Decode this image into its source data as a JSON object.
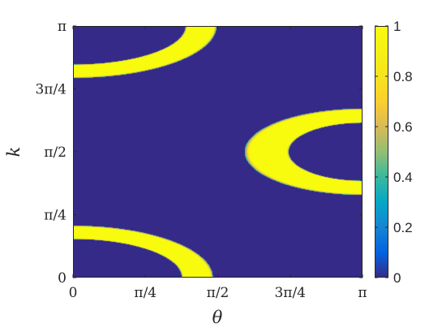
{
  "chart_data": {
    "type": "heatmap",
    "title": "",
    "xlabel": "θ",
    "ylabel": "k",
    "xlim": [
      0,
      3.14159
    ],
    "ylim": [
      0,
      3.14159
    ],
    "x_ticks": [
      {
        "value": 0,
        "label": "0"
      },
      {
        "value": 0.7854,
        "label": "π/4"
      },
      {
        "value": 1.5708,
        "label": "π/2"
      },
      {
        "value": 2.3562,
        "label": "3π/4"
      },
      {
        "value": 3.14159,
        "label": "π"
      }
    ],
    "y_ticks": [
      {
        "value": 0,
        "label": "0"
      },
      {
        "value": 0.7854,
        "label": "π/4"
      },
      {
        "value": 1.5708,
        "label": "π/2"
      },
      {
        "value": 2.3562,
        "label": "3π/4"
      },
      {
        "value": 3.14159,
        "label": "π"
      }
    ],
    "colorbar": {
      "range": [
        0,
        1
      ],
      "ticks": [
        "0",
        "0.2",
        "0.4",
        "0.6",
        "0.8",
        "1"
      ],
      "colormap": "parula"
    },
    "background_value": 0,
    "regions": [
      {
        "description": "lower-left arc band",
        "center": [
          0,
          0
        ],
        "inner_radii": [
          1.18,
          0.48
        ],
        "outer_radii": [
          1.52,
          0.65
        ],
        "peak_value": 1
      },
      {
        "description": "upper-left arc band",
        "center": [
          0,
          3.14159
        ],
        "inner_radii": [
          1.22,
          0.48
        ],
        "outer_radii": [
          1.56,
          0.65
        ],
        "peak_value": 1
      },
      {
        "description": "right C-shaped band",
        "center": [
          3.14159,
          1.5708
        ],
        "inner_radii": [
          0.8,
          0.36
        ],
        "outer_radii": [
          1.28,
          0.54
        ],
        "peak_value": 1
      }
    ]
  }
}
